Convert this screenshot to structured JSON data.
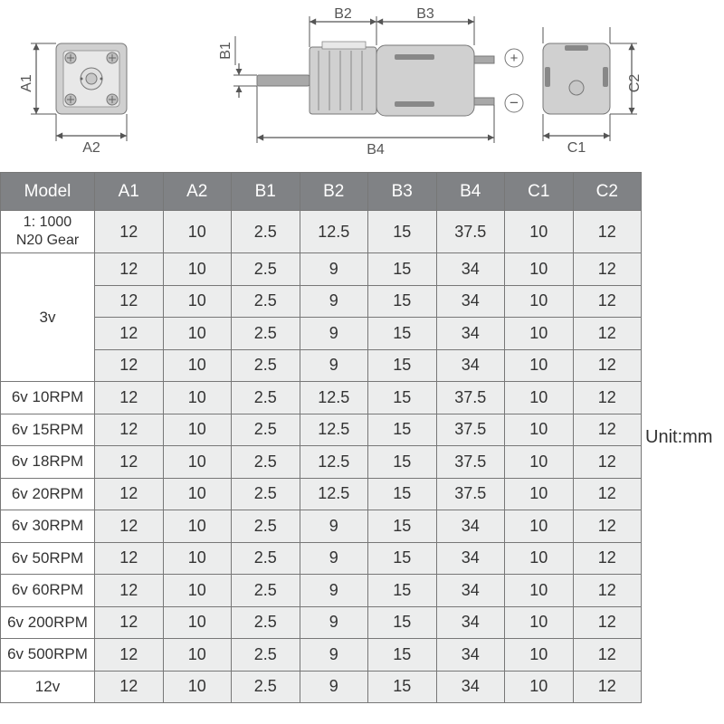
{
  "unit_label": "Unit:mm",
  "dimensions": {
    "A1": "A1",
    "A2": "A2",
    "B1": "B1",
    "B2": "B2",
    "B3": "B3",
    "B4": "B4",
    "C1": "C1",
    "C2": "C2"
  },
  "table": {
    "columns": [
      "Model",
      "A1",
      "A2",
      "B1",
      "B2",
      "B3",
      "B4",
      "C1",
      "C2"
    ],
    "header_bg": "#808285",
    "header_fg": "#ffffff",
    "cell_bg": "#eceded",
    "model_bg": "#ffffff",
    "border_color": "#777777",
    "rows": [
      {
        "model": "1: 1000\nN20 Gear",
        "model_rowspan": 1,
        "vals": [
          "12",
          "10",
          "2.5",
          "12.5",
          "15",
          "37.5",
          "10",
          "12"
        ]
      },
      {
        "model": "3v",
        "model_rowspan": 4,
        "vals": [
          "12",
          "10",
          "2.5",
          "9",
          "15",
          "34",
          "10",
          "12"
        ]
      },
      {
        "vals": [
          "12",
          "10",
          "2.5",
          "9",
          "15",
          "34",
          "10",
          "12"
        ]
      },
      {
        "vals": [
          "12",
          "10",
          "2.5",
          "9",
          "15",
          "34",
          "10",
          "12"
        ]
      },
      {
        "vals": [
          "12",
          "10",
          "2.5",
          "9",
          "15",
          "34",
          "10",
          "12"
        ]
      },
      {
        "model": "6v 10RPM",
        "vals": [
          "12",
          "10",
          "2.5",
          "12.5",
          "15",
          "37.5",
          "10",
          "12"
        ]
      },
      {
        "model": "6v 15RPM",
        "vals": [
          "12",
          "10",
          "2.5",
          "12.5",
          "15",
          "37.5",
          "10",
          "12"
        ]
      },
      {
        "model": "6v 18RPM",
        "vals": [
          "12",
          "10",
          "2.5",
          "12.5",
          "15",
          "37.5",
          "10",
          "12"
        ]
      },
      {
        "model": "6v 20RPM",
        "vals": [
          "12",
          "10",
          "2.5",
          "12.5",
          "15",
          "37.5",
          "10",
          "12"
        ]
      },
      {
        "model": "6v 30RPM",
        "vals": [
          "12",
          "10",
          "2.5",
          "9",
          "15",
          "34",
          "10",
          "12"
        ]
      },
      {
        "model": "6v 50RPM",
        "vals": [
          "12",
          "10",
          "2.5",
          "9",
          "15",
          "34",
          "10",
          "12"
        ]
      },
      {
        "model": "6v 60RPM",
        "vals": [
          "12",
          "10",
          "2.5",
          "9",
          "15",
          "34",
          "10",
          "12"
        ]
      },
      {
        "model": "6v 200RPM",
        "vals": [
          "12",
          "10",
          "2.5",
          "9",
          "15",
          "34",
          "10",
          "12"
        ]
      },
      {
        "model": "6v 500RPM",
        "vals": [
          "12",
          "10",
          "2.5",
          "9",
          "15",
          "34",
          "10",
          "12"
        ]
      },
      {
        "model": "12v",
        "vals": [
          "12",
          "10",
          "2.5",
          "9",
          "15",
          "34",
          "10",
          "12"
        ]
      }
    ]
  },
  "styling": {
    "page_bg": "#ffffff",
    "diagram_part": "#d0d0d0",
    "diagram_part_dark": "#a8a8a8",
    "diagram_line": "#555555",
    "font_family": "Arial",
    "table_font_size": 18,
    "header_font_size": 19
  }
}
